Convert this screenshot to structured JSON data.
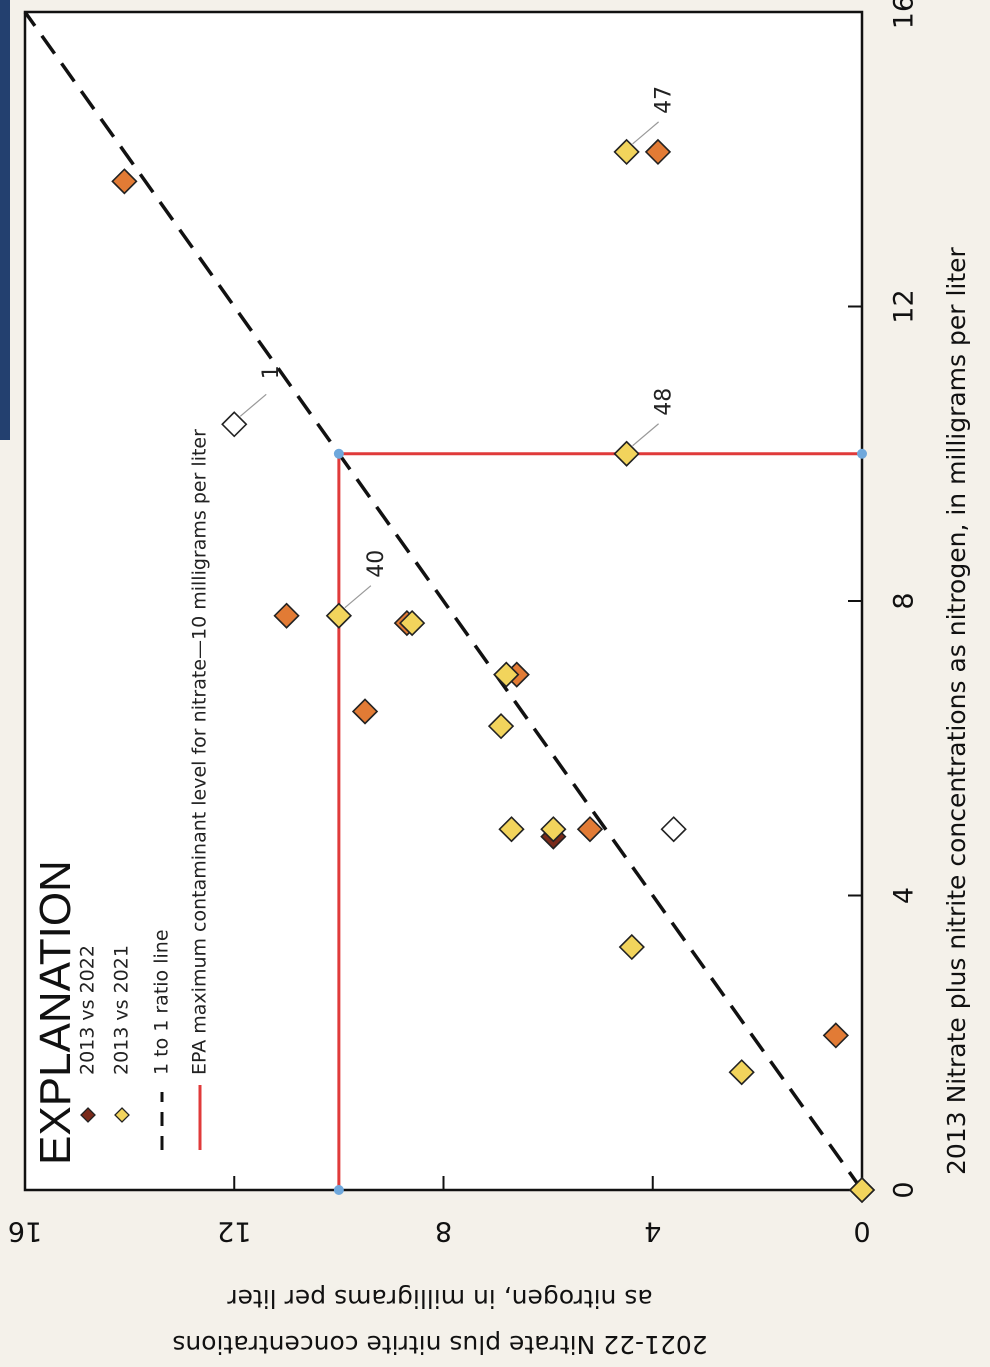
{
  "chart_data": {
    "type": "scatter",
    "title": "",
    "xlabel": "2013 Nitrate plus nitrite concentrations as nitrogen, in milligrams per liter",
    "ylabel_line1": "2021-22 Nitrate plus nitrite concentrations",
    "ylabel_line2": "as nitrogen, in milligrams per liter",
    "xlim": [
      0,
      16
    ],
    "ylim": [
      0,
      16
    ],
    "x_ticks": [
      0,
      4,
      8,
      12,
      16
    ],
    "y_ticks": [
      0,
      4,
      8,
      12,
      16
    ],
    "grid": false,
    "legend": {
      "title": "EXPLANATION",
      "placement": "top-left",
      "entries": [
        "2013 vs 2022",
        "2013 vs 2021",
        "1 to 1 ratio line",
        "EPA maximum contaminant level for nitrate—10 milligrams per liter"
      ]
    },
    "colors": {
      "orange": "#e27b35",
      "yellow": "#f2d45c",
      "white": "#ffffff",
      "darkred": "#7a2a1a",
      "epa_line": "#e03a3a",
      "ratio_line": "#111111"
    },
    "series": [
      {
        "name": "2013 vs 2022",
        "points": [
          {
            "x": 0.0,
            "y": 0.0,
            "color": "yellow"
          },
          {
            "x": 4.8,
            "y": 5.9,
            "color": "darkred"
          },
          {
            "x": 13.7,
            "y": 14.1,
            "color": "orange"
          },
          {
            "x": 10.0,
            "y": 4.5,
            "color": "yellow",
            "label": "48"
          },
          {
            "x": 14.1,
            "y": 3.9,
            "color": "orange"
          },
          {
            "x": 7.8,
            "y": 11.0,
            "color": "orange"
          },
          {
            "x": 7.7,
            "y": 8.7,
            "color": "orange"
          },
          {
            "x": 6.5,
            "y": 9.5,
            "color": "orange"
          },
          {
            "x": 7.0,
            "y": 6.6,
            "color": "orange"
          },
          {
            "x": 4.9,
            "y": 5.2,
            "color": "orange"
          },
          {
            "x": 2.1,
            "y": 0.5,
            "color": "orange"
          }
        ]
      },
      {
        "name": "2013 vs 2021",
        "points": [
          {
            "x": 0.0,
            "y": 0.0,
            "color": "yellow"
          },
          {
            "x": 10.4,
            "y": 12.0,
            "color": "white",
            "label": "1"
          },
          {
            "x": 7.8,
            "y": 10.0,
            "color": "yellow",
            "label": "40"
          },
          {
            "x": 7.7,
            "y": 8.6,
            "color": "yellow"
          },
          {
            "x": 7.0,
            "y": 6.8,
            "color": "yellow"
          },
          {
            "x": 6.3,
            "y": 6.9,
            "color": "yellow"
          },
          {
            "x": 4.9,
            "y": 6.7,
            "color": "yellow"
          },
          {
            "x": 4.9,
            "y": 5.9,
            "color": "yellow"
          },
          {
            "x": 4.9,
            "y": 3.6,
            "color": "white"
          },
          {
            "x": 3.3,
            "y": 4.4,
            "color": "yellow"
          },
          {
            "x": 1.6,
            "y": 2.3,
            "color": "yellow"
          },
          {
            "x": 14.1,
            "y": 4.5,
            "color": "yellow",
            "label": "47"
          }
        ]
      }
    ],
    "reference_lines": [
      {
        "name": "1 to 1 ratio line",
        "from": [
          0,
          0
        ],
        "to": [
          16,
          16
        ],
        "style": "dashed"
      },
      {
        "name": "EPA maximum contaminant level for nitrate—10 milligrams per liter",
        "vertical_x": 10,
        "horizontal_y": 10
      }
    ]
  }
}
